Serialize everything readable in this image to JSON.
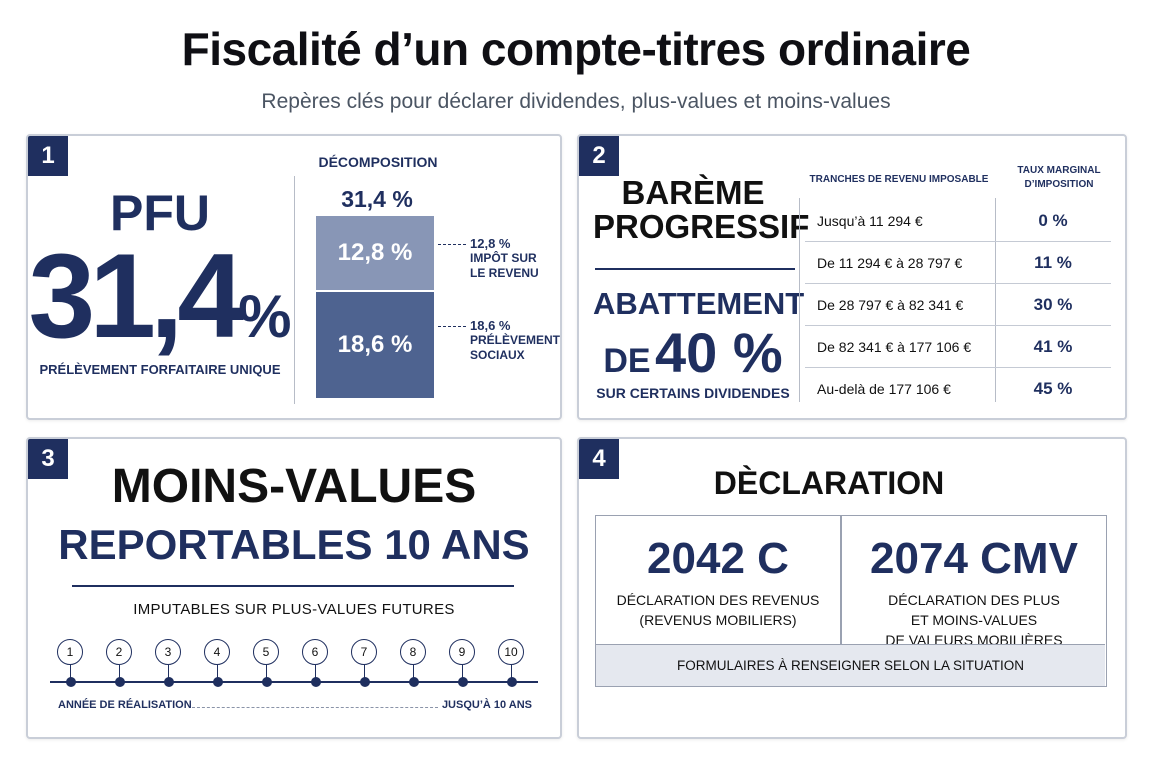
{
  "title": "Fiscalité d’un compte-titres ordinaire",
  "subtitle": "Repères clés pour déclarer dividendes, plus-values et moins-values",
  "colors": {
    "navy": "#1f2f5f",
    "bar_light": "#8896b6",
    "bar_dark": "#4e6390"
  },
  "panel1": {
    "number": "1",
    "pfu_label": "PFU",
    "pfu_value": "31,4",
    "pfu_pct": "%",
    "pfu_subtitle": "PRÉLÈVEMENT FORFAITAIRE UNIQUE",
    "decomposition_title": "DÉCOMPOSITION",
    "total": "31,4 %",
    "bar_top_value": "12,8 %",
    "bar_bottom_value": "18,6 %",
    "label1_value": "12,8 %",
    "label1_line1": "IMPÔT SUR",
    "label1_line2": "LE REVENU",
    "label2_value": "18,6 %",
    "label2_line1": "PRÉLÈVEMENTS",
    "label2_line2": "SOCIAUX"
  },
  "panel2": {
    "number": "2",
    "bareme_line1": "BARÈME",
    "bareme_line2": "PROGRESSIF",
    "abattement": "ABATTEMENT",
    "de": "DE",
    "pct": "40 %",
    "certains": "SUR CERTAINS DIVIDENDES",
    "col1_header": "TRANCHES DE REVENU IMPOSABLE",
    "col2_header_line1": "TAUX MARGINAL",
    "col2_header_line2": "D’IMPOSITION",
    "rows": [
      {
        "tranche": "Jusqu’à 11 294 €",
        "taux": "0 %"
      },
      {
        "tranche": "De 11 294 € à 28 797 €",
        "taux": "11 %"
      },
      {
        "tranche": "De 28 797 € à 82 341 €",
        "taux": "30 %"
      },
      {
        "tranche": "De 82 341 € à 177 106 €",
        "taux": "41 %"
      },
      {
        "tranche": "Au-delà de 177 106 €",
        "taux": "45 %"
      }
    ]
  },
  "panel3": {
    "number": "3",
    "title_line1": "MOINS-VALUES",
    "title_line2": "REPORTABLES 10 ANS",
    "subtitle": "IMPUTABLES SUR PLUS-VALUES FUTURES",
    "years": [
      "1",
      "2",
      "3",
      "4",
      "5",
      "6",
      "7",
      "8",
      "9",
      "10"
    ],
    "start_label": "ANNÉE DE RÉALISATION",
    "end_label": "JUSQU’À 10 ANS"
  },
  "panel4": {
    "number": "4",
    "title": "DÈCLARATION",
    "form1_code": "2042 C",
    "form1_desc_line1": "DÉCLARATION DES REVENUS",
    "form1_desc_line2": "(REVENUS MOBILIERS)",
    "form2_code": "2074 CMV",
    "form2_desc_line1": "DÉCLARATION DES PLUS",
    "form2_desc_line2": "ET MOINS-VALUES",
    "form2_desc_line3": "DE VALEURS MOBILIÈRES",
    "footer": "FORMULAIRES À RENSEIGNER SELON LA SITUATION"
  }
}
